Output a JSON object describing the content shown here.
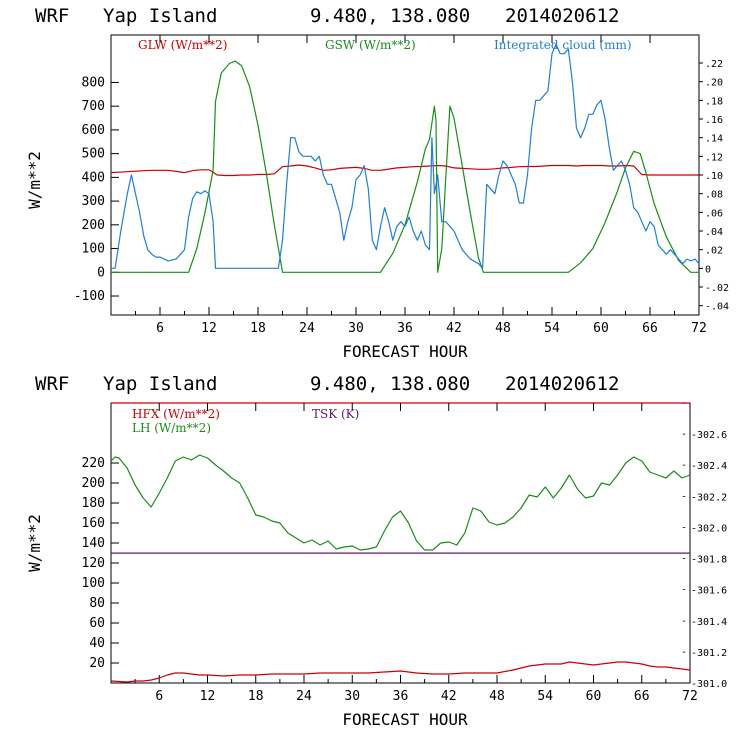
{
  "chart_data": [
    {
      "type": "line",
      "title": {
        "model": "WRF",
        "location": "Yap Island",
        "coords": "9.480, 138.080",
        "init": "2014020612"
      },
      "xlabel": "FORECAST HOUR",
      "ylabel": "W/m**2",
      "xlim": [
        0,
        72
      ],
      "ylim": [
        -180,
        1000
      ],
      "y2lim": [
        -0.05,
        0.25
      ],
      "xticks": [
        "6",
        "12",
        "18",
        "24",
        "30",
        "36",
        "42",
        "48",
        "54",
        "60",
        "66",
        "72"
      ],
      "yticks": [
        "800",
        "700",
        "600",
        "500",
        "400",
        "300",
        "200",
        "100",
        "0",
        "-100"
      ],
      "y2ticks": [
        ".22",
        ".20",
        ".18",
        ".16",
        ".14",
        ".12",
        ".10",
        ".08",
        ".06",
        ".04",
        ".02",
        "0",
        "-.02",
        "-.04"
      ],
      "series": [
        {
          "name": "GLW (W/m**2)",
          "color": "#cc0000",
          "axis": "left",
          "x": [
            0,
            1,
            2,
            3,
            4,
            5,
            6,
            7,
            8,
            9,
            10,
            11,
            12,
            13,
            14,
            15,
            16,
            17,
            18,
            19,
            20,
            21,
            22,
            23,
            24,
            25,
            26,
            27,
            28,
            29,
            30,
            31,
            32,
            33,
            34,
            35,
            36,
            37,
            38,
            39,
            40,
            41,
            42,
            43,
            44,
            45,
            46,
            47,
            48,
            49,
            50,
            51,
            52,
            53,
            54,
            55,
            56,
            57,
            58,
            59,
            60,
            61,
            62,
            63,
            64,
            65,
            66,
            67,
            68,
            69,
            70,
            71,
            72
          ],
          "y": [
            420,
            422,
            424,
            426,
            428,
            430,
            430,
            430,
            425,
            420,
            428,
            432,
            432,
            410,
            408,
            408,
            410,
            410,
            412,
            412,
            415,
            445,
            448,
            452,
            448,
            440,
            430,
            432,
            438,
            440,
            442,
            438,
            430,
            430,
            435,
            440,
            442,
            445,
            446,
            448,
            450,
            448,
            440,
            438,
            436,
            434,
            434,
            436,
            440,
            442,
            445,
            446,
            446,
            448,
            450,
            450,
            450,
            448,
            450,
            450,
            450,
            448,
            448,
            450,
            448,
            412,
            410,
            410,
            410,
            410,
            410,
            410,
            410
          ]
        },
        {
          "name": "GSW (W/m**2)",
          "color": "#1a8c1a",
          "axis": "left",
          "x": [
            0,
            9.5,
            10.5,
            11.5,
            12.5,
            12.8,
            13.5,
            14.5,
            15.2,
            16,
            17,
            18,
            19,
            20,
            20.8,
            21,
            33,
            34.5,
            36,
            37.5,
            38.5,
            39,
            39.6,
            39.8,
            40,
            40.5,
            41,
            41.5,
            42,
            43,
            44,
            45,
            45.6,
            46,
            56,
            57.5,
            59,
            60.5,
            62,
            63,
            64,
            64.8,
            65.5,
            66.5,
            68,
            69.5,
            71,
            72
          ],
          "y": [
            0,
            0,
            100,
            250,
            430,
            720,
            840,
            880,
            890,
            870,
            780,
            620,
            420,
            200,
            40,
            0,
            0,
            80,
            200,
            380,
            520,
            560,
            700,
            640,
            0,
            100,
            400,
            700,
            650,
            450,
            250,
            60,
            0,
            0,
            0,
            40,
            100,
            210,
            340,
            440,
            510,
            500,
            420,
            290,
            150,
            50,
            0,
            0
          ]
        },
        {
          "name": "Integrated cloud (mm)",
          "color": "#1f7fd6",
          "axis": "right",
          "x": [
            0,
            0.5,
            1.2,
            2,
            2.5,
            3,
            3.5,
            4,
            4.5,
            5,
            5.5,
            6,
            7,
            8,
            8.5,
            9,
            9.5,
            10,
            10.5,
            11,
            11.5,
            12,
            12.5,
            12.8,
            13,
            20.5,
            21,
            21.5,
            22,
            22.5,
            23,
            23.5,
            24,
            24.5,
            25,
            25.5,
            26,
            26.5,
            27,
            28,
            28.5,
            29,
            29.5,
            30,
            30.5,
            31,
            31.5,
            32,
            32.5,
            33,
            33.5,
            34,
            34.5,
            35,
            35.5,
            36,
            36.5,
            37,
            37.5,
            38,
            38.5,
            39,
            39.3,
            39.6,
            40,
            40.5,
            41,
            42,
            43,
            44,
            45,
            45.5,
            46,
            47,
            47.5,
            48,
            48.5,
            49,
            49.5,
            50,
            50.5,
            51,
            51.5,
            52,
            52.5,
            53,
            53.5,
            54,
            54.5,
            55,
            55.5,
            56,
            56.5,
            57,
            57.5,
            58,
            58.5,
            59,
            59.5,
            60,
            60.5,
            61,
            61.5,
            62,
            62.5,
            63,
            63.5,
            64,
            64.5,
            65,
            65.5,
            66,
            66.5,
            67,
            67.5,
            68,
            68.5,
            69,
            69.5,
            70,
            70.5,
            71,
            71.5,
            72
          ],
          "y": [
            0,
            0,
            0.04,
            0.08,
            0.1,
            0.08,
            0.06,
            0.035,
            0.02,
            0.015,
            0.012,
            0.012,
            0.008,
            0.01,
            0.015,
            0.02,
            0.055,
            0.075,
            0.082,
            0.08,
            0.083,
            0.08,
            0.05,
            0,
            0,
            0,
            0.03,
            0.09,
            0.14,
            0.14,
            0.125,
            0.12,
            0.12,
            0.12,
            0.115,
            0.12,
            0.1,
            0.09,
            0.09,
            0.06,
            0.03,
            0.05,
            0.065,
            0.095,
            0.1,
            0.11,
            0.085,
            0.03,
            0.02,
            0.045,
            0.065,
            0.05,
            0.03,
            0.045,
            0.05,
            0.045,
            0.055,
            0.04,
            0.03,
            0.04,
            0.025,
            0.02,
            0.14,
            0.08,
            0.1,
            0.05,
            0.05,
            0.04,
            0.02,
            0.01,
            0.005,
            0,
            0.09,
            0.08,
            0.1,
            0.115,
            0.11,
            0.1,
            0.09,
            0.07,
            0.07,
            0.1,
            0.15,
            0.18,
            0.18,
            0.185,
            0.19,
            0.23,
            0.24,
            0.23,
            0.23,
            0.235,
            0.2,
            0.15,
            0.14,
            0.15,
            0.165,
            0.165,
            0.175,
            0.18,
            0.16,
            0.13,
            0.105,
            0.11,
            0.115,
            0.105,
            0.09,
            0.065,
            0.06,
            0.05,
            0.04,
            0.05,
            0.045,
            0.025,
            0.02,
            0.015,
            0.02,
            0.015,
            0.01,
            0.005,
            0.01,
            0.008,
            0.01,
            0.005
          ]
        }
      ]
    },
    {
      "type": "line",
      "title": {
        "model": "WRF",
        "location": "Yap Island",
        "coords": "9.480, 138.080",
        "init": "2014020612"
      },
      "xlabel": "FORECAST HOUR",
      "ylabel": "W/m**2",
      "xlim": [
        0,
        72
      ],
      "ylim": [
        0,
        280
      ],
      "y2lim": [
        301.0,
        302.8
      ],
      "y2_grid": [
        "302.8",
        "302.6",
        "302.4",
        "302.2",
        "302.0",
        "301.8",
        "301.6",
        "301.4",
        "301.2",
        "301.0"
      ],
      "xticks": [
        "6",
        "12",
        "18",
        "24",
        "30",
        "36",
        "42",
        "48",
        "54",
        "60",
        "66",
        "72"
      ],
      "yticks": [
        "220",
        "200",
        "180",
        "160",
        "140",
        "120",
        "100",
        "80",
        "60",
        "40",
        "20"
      ],
      "y2ticks": [
        "302.6",
        "302.4",
        "302.2",
        "302.0",
        "301.8",
        "301.6",
        "301.4",
        "301.2",
        "301.0"
      ],
      "series": [
        {
          "name": "HFX (W/m**2)",
          "color": "#cc0000",
          "axis": "left",
          "x": [
            0,
            2,
            3,
            4,
            5,
            6,
            7,
            8,
            9,
            10,
            11,
            12,
            14,
            16,
            18,
            20,
            22,
            24,
            26,
            28,
            30,
            32,
            34,
            36,
            38,
            40,
            42,
            44,
            46,
            48,
            50,
            52,
            53,
            54,
            55,
            56,
            57,
            58,
            59,
            60,
            61,
            62,
            63,
            64,
            65,
            66,
            67,
            68,
            69,
            70,
            71,
            72
          ],
          "y": [
            2,
            1,
            2,
            2,
            3,
            5,
            8,
            10,
            10,
            9,
            8,
            8,
            7,
            8,
            8,
            9,
            9,
            9,
            10,
            10,
            10,
            10,
            11,
            12,
            10,
            9,
            9,
            10,
            10,
            10,
            13,
            17,
            18,
            19,
            19,
            19,
            21,
            20,
            19,
            18,
            19,
            20,
            21,
            21,
            20,
            19,
            17,
            16,
            16,
            15,
            14,
            13
          ]
        },
        {
          "name": "LH (W/m**2)",
          "color": "#1a8c1a",
          "axis": "left",
          "x": [
            0,
            0.5,
            1,
            2,
            3,
            4,
            5,
            6,
            7,
            8,
            9,
            10,
            11,
            12,
            13,
            14,
            15,
            16,
            17,
            18,
            19,
            20,
            21,
            22,
            23,
            24,
            25,
            26,
            27,
            28,
            29,
            30,
            31,
            32,
            33,
            34,
            35,
            36,
            37,
            38,
            39,
            40,
            41,
            42,
            43,
            44,
            45,
            46,
            47,
            48,
            49,
            50,
            51,
            52,
            53,
            54,
            55,
            56,
            57,
            58,
            59,
            60,
            61,
            62,
            63,
            64,
            65,
            66,
            67,
            68,
            69,
            70,
            71,
            72
          ],
          "y": [
            222,
            226,
            225,
            215,
            198,
            185,
            176,
            190,
            205,
            222,
            226,
            223,
            228,
            225,
            218,
            212,
            205,
            200,
            185,
            168,
            166,
            162,
            160,
            150,
            145,
            140,
            143,
            138,
            142,
            134,
            136,
            137,
            133,
            134,
            136,
            152,
            166,
            172,
            160,
            142,
            133,
            133,
            140,
            141,
            138,
            150,
            175,
            172,
            161,
            158,
            160,
            166,
            175,
            188,
            186,
            196,
            185,
            195,
            208,
            194,
            185,
            187,
            200,
            198,
            208,
            220,
            226,
            222,
            211,
            208,
            205,
            212,
            205,
            208
          ]
        },
        {
          "name": "TSK (K)",
          "color": "#5c1a66",
          "axis": "right",
          "x": [
            0,
            72
          ],
          "y": [
            301.835,
            301.835
          ]
        }
      ]
    }
  ]
}
